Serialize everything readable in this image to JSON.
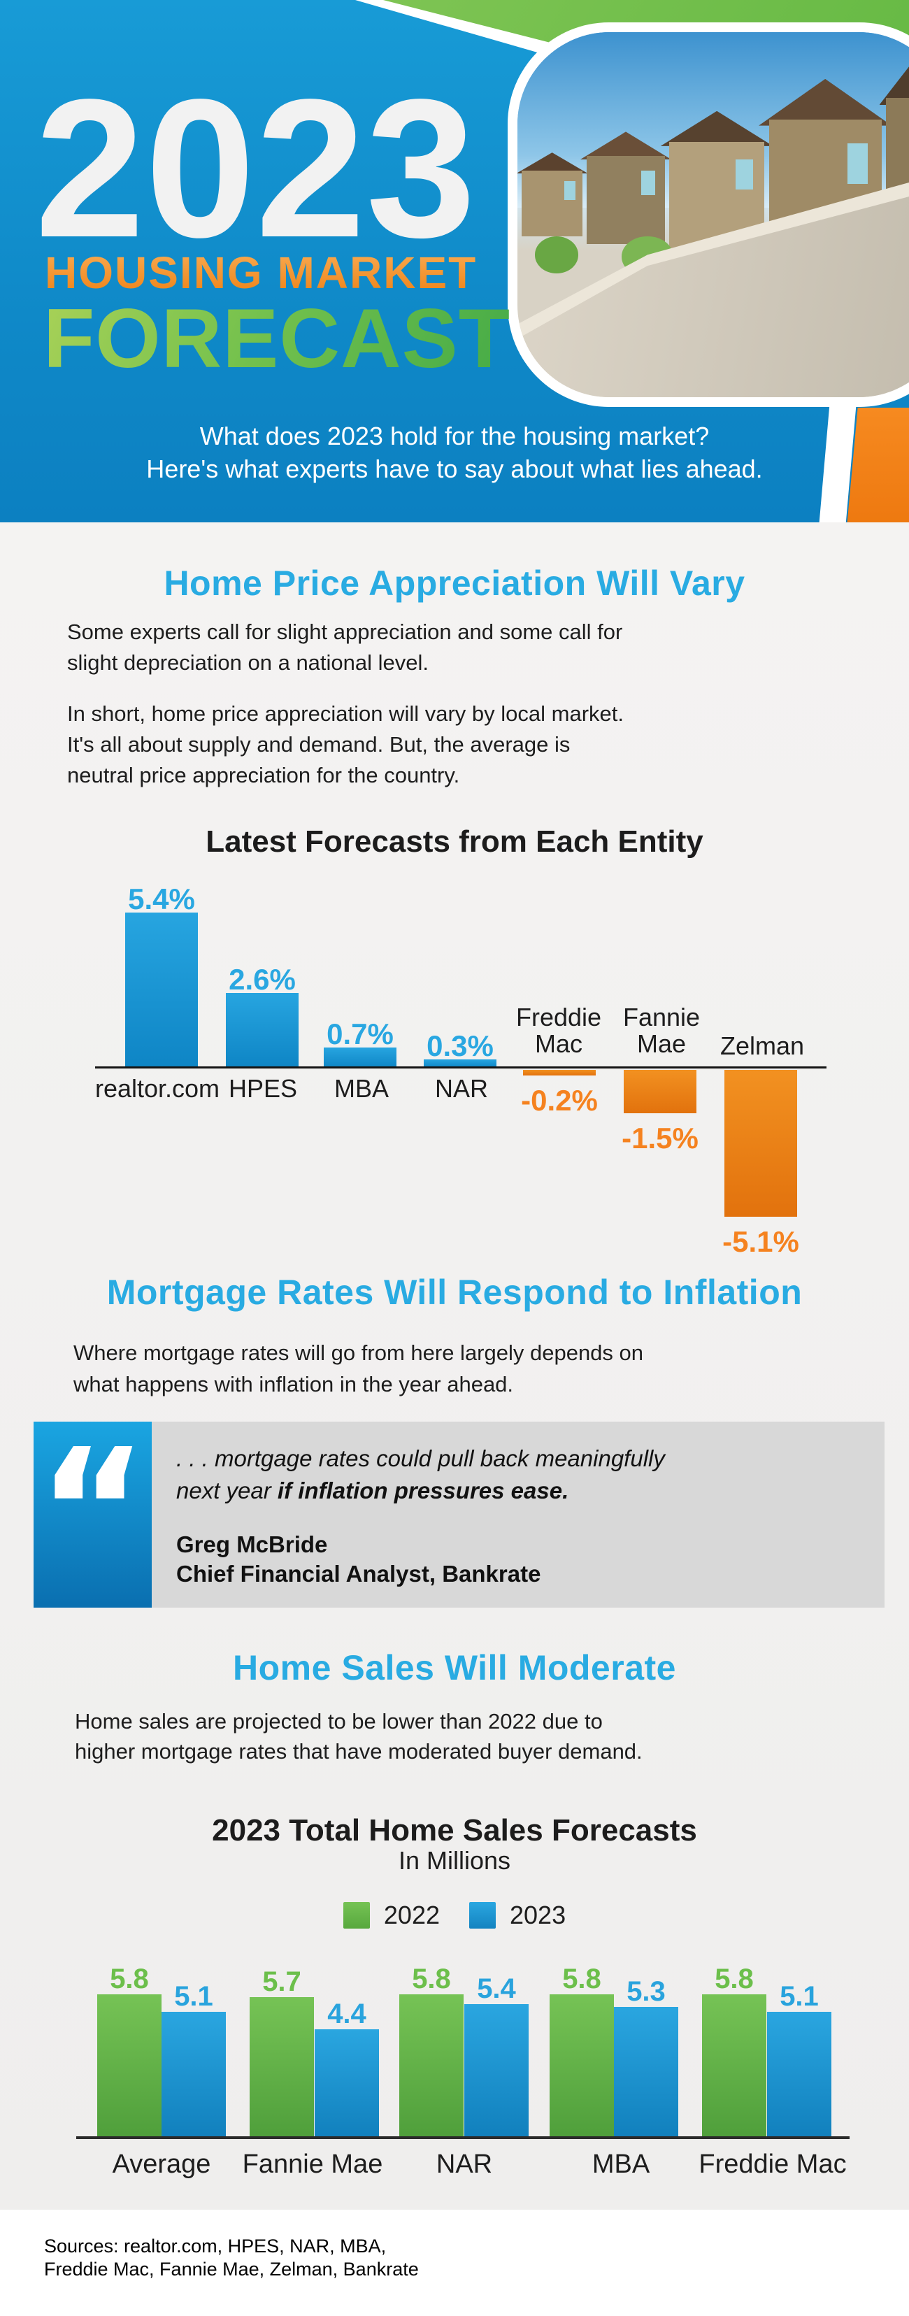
{
  "header": {
    "year": "2023",
    "title_line1": "HOUSING MARKET",
    "title_line2": "FORECAST",
    "subtitle_line1": "What does 2023 hold for the housing market?",
    "subtitle_line2": "Here's what experts have to say about what lies ahead."
  },
  "sections": {
    "price": {
      "heading": "Home Price Appreciation Will Vary",
      "para1": [
        "Some experts call for slight appreciation and some call for",
        "slight depreciation on a national level."
      ],
      "para2": [
        "In short, home price appreciation will vary by local market.",
        "It's all about supply and demand. But, the average is",
        "neutral price appreciation for the country."
      ]
    },
    "rates": {
      "heading": "Mortgage Rates Will Respond to Inflation",
      "para": [
        "Where mortgage rates will go from here largely depends on",
        "what happens with inflation in the year ahead."
      ],
      "quote": {
        "line1": ". . . mortgage rates could pull back meaningfully",
        "line2_normal": "next year ",
        "line2_bold": "if inflation pressures ease.",
        "author": "Greg McBride",
        "author_title": "Chief Financial Analyst, Bankrate"
      }
    },
    "sales": {
      "heading": "Home Sales Will Moderate",
      "para": [
        "Home sales are projected to be lower than 2022 due to",
        "higher mortgage rates that have moderated buyer demand."
      ]
    }
  },
  "chart_data": [
    {
      "type": "bar",
      "title": "Latest Forecasts from Each Entity",
      "categories": [
        "realtor.com",
        "HPES",
        "MBA",
        "NAR",
        "Freddie Mac",
        "Fannie Mae",
        "Zelman"
      ],
      "values": [
        5.4,
        2.6,
        0.7,
        0.3,
        -0.2,
        -1.5,
        -5.1
      ],
      "value_labels": [
        "5.4%",
        "2.6%",
        "0.7%",
        "0.3%",
        "-0.2%",
        "-1.5%",
        "-5.1%"
      ],
      "unit": "%",
      "baseline": 0,
      "ylim": [
        -5.5,
        5.8
      ],
      "grid": "off",
      "positive_color": "#1b9cd8",
      "negative_color": "#ec7f15"
    },
    {
      "type": "bar",
      "title": "2023 Total Home Sales Forecasts",
      "subtitle": "In Millions",
      "categories": [
        "Average",
        "Fannie Mae",
        "NAR",
        "MBA",
        "Freddie Mac"
      ],
      "series": [
        {
          "name": "2022",
          "color": "#63b94a",
          "values": [
            5.8,
            5.7,
            5.8,
            5.8,
            5.8
          ],
          "value_labels": [
            "5.8",
            "5.7",
            "5.8",
            "5.8",
            "5.8"
          ]
        },
        {
          "name": "2023",
          "color": "#1f9cd9",
          "values": [
            5.1,
            4.4,
            5.4,
            5.3,
            5.1
          ],
          "value_labels": [
            "5.1",
            "4.4",
            "5.4",
            "5.3",
            "5.1"
          ]
        }
      ],
      "legend_position": "top-center",
      "baseline": 0,
      "ylim": [
        0,
        6.2
      ],
      "grid": "off"
    }
  ],
  "footer": {
    "sources_line1": "Sources: realtor.com, HPES, NAR, MBA,",
    "sources_line2": "Freddie Mac, Fannie Mae, Zelman, Bankrate"
  },
  "colors": {
    "header_blue": "#0f89c8",
    "corner_green": "#6cbd45",
    "accent_orange": "#f5821f",
    "heading_blue": "#29abe2",
    "quote_gray": "#d8d8d8",
    "bar_blue": "#1b9cd8",
    "bar_orange": "#ec7f15",
    "bar_green": "#63b94a",
    "text_dark": "#1d1d1d"
  }
}
